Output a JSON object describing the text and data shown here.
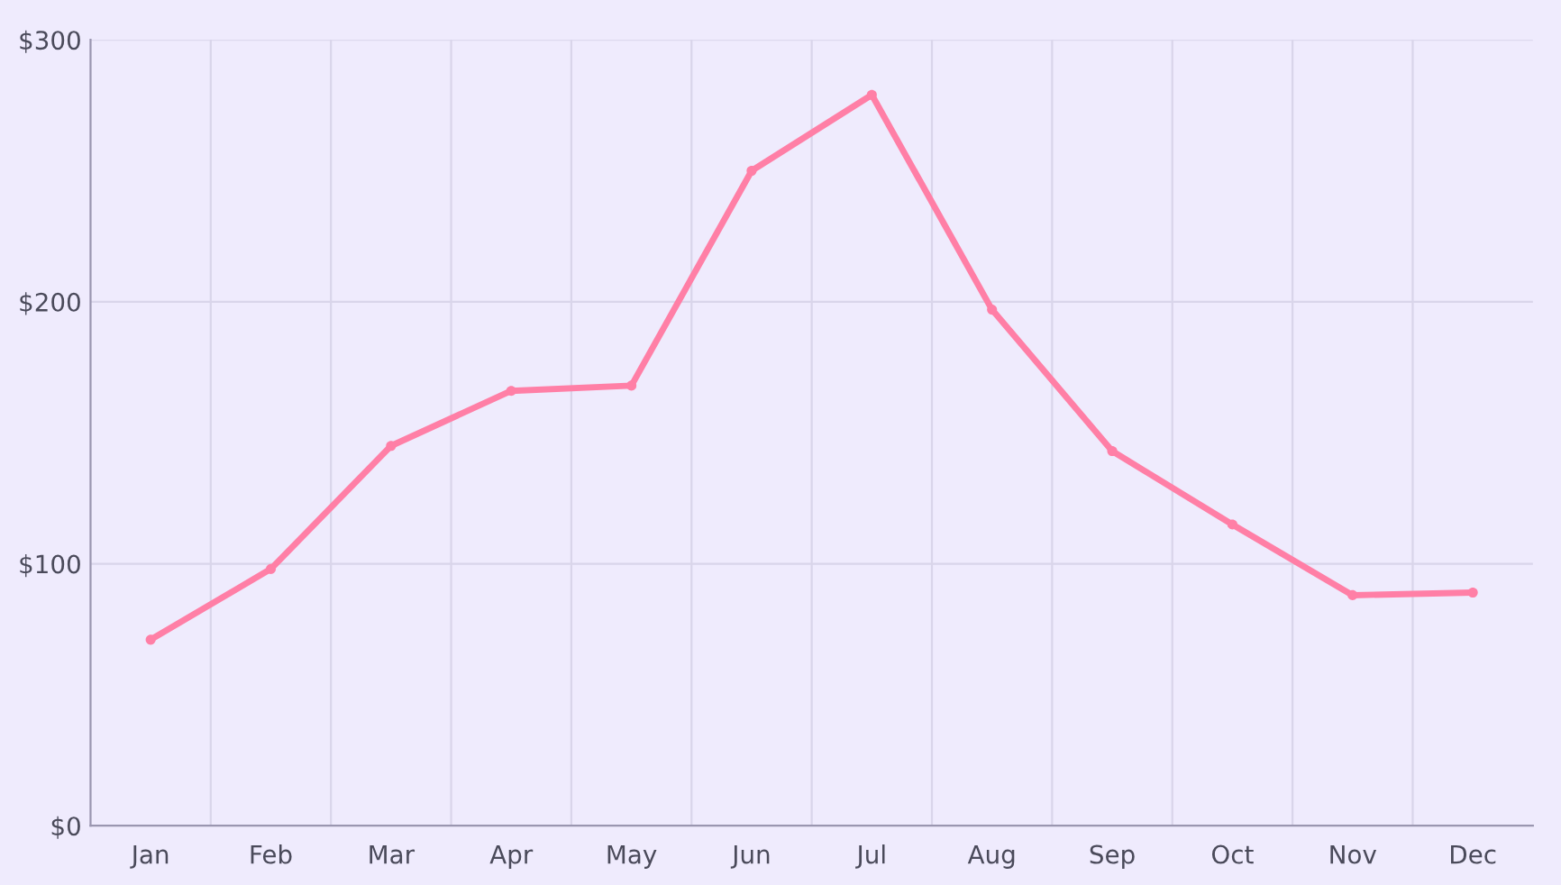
{
  "chart_data": {
    "type": "line",
    "categories": [
      "Jan",
      "Feb",
      "Mar",
      "Apr",
      "May",
      "Jun",
      "Jul",
      "Aug",
      "Sep",
      "Oct",
      "Nov",
      "Dec"
    ],
    "series": [
      {
        "color": "#ff7fa6",
        "values": [
          71,
          98,
          145,
          166,
          168,
          250,
          279,
          197,
          143,
          115,
          88,
          89
        ]
      }
    ],
    "ylim": [
      0,
      300
    ],
    "yticks": [
      {
        "value": 0,
        "label": "$0"
      },
      {
        "value": 100,
        "label": "$100"
      },
      {
        "value": 200,
        "label": "$200"
      },
      {
        "value": 300,
        "label": "$300"
      }
    ],
    "grid": true,
    "marker": "circle",
    "line_style": "solid",
    "legend": false
  }
}
